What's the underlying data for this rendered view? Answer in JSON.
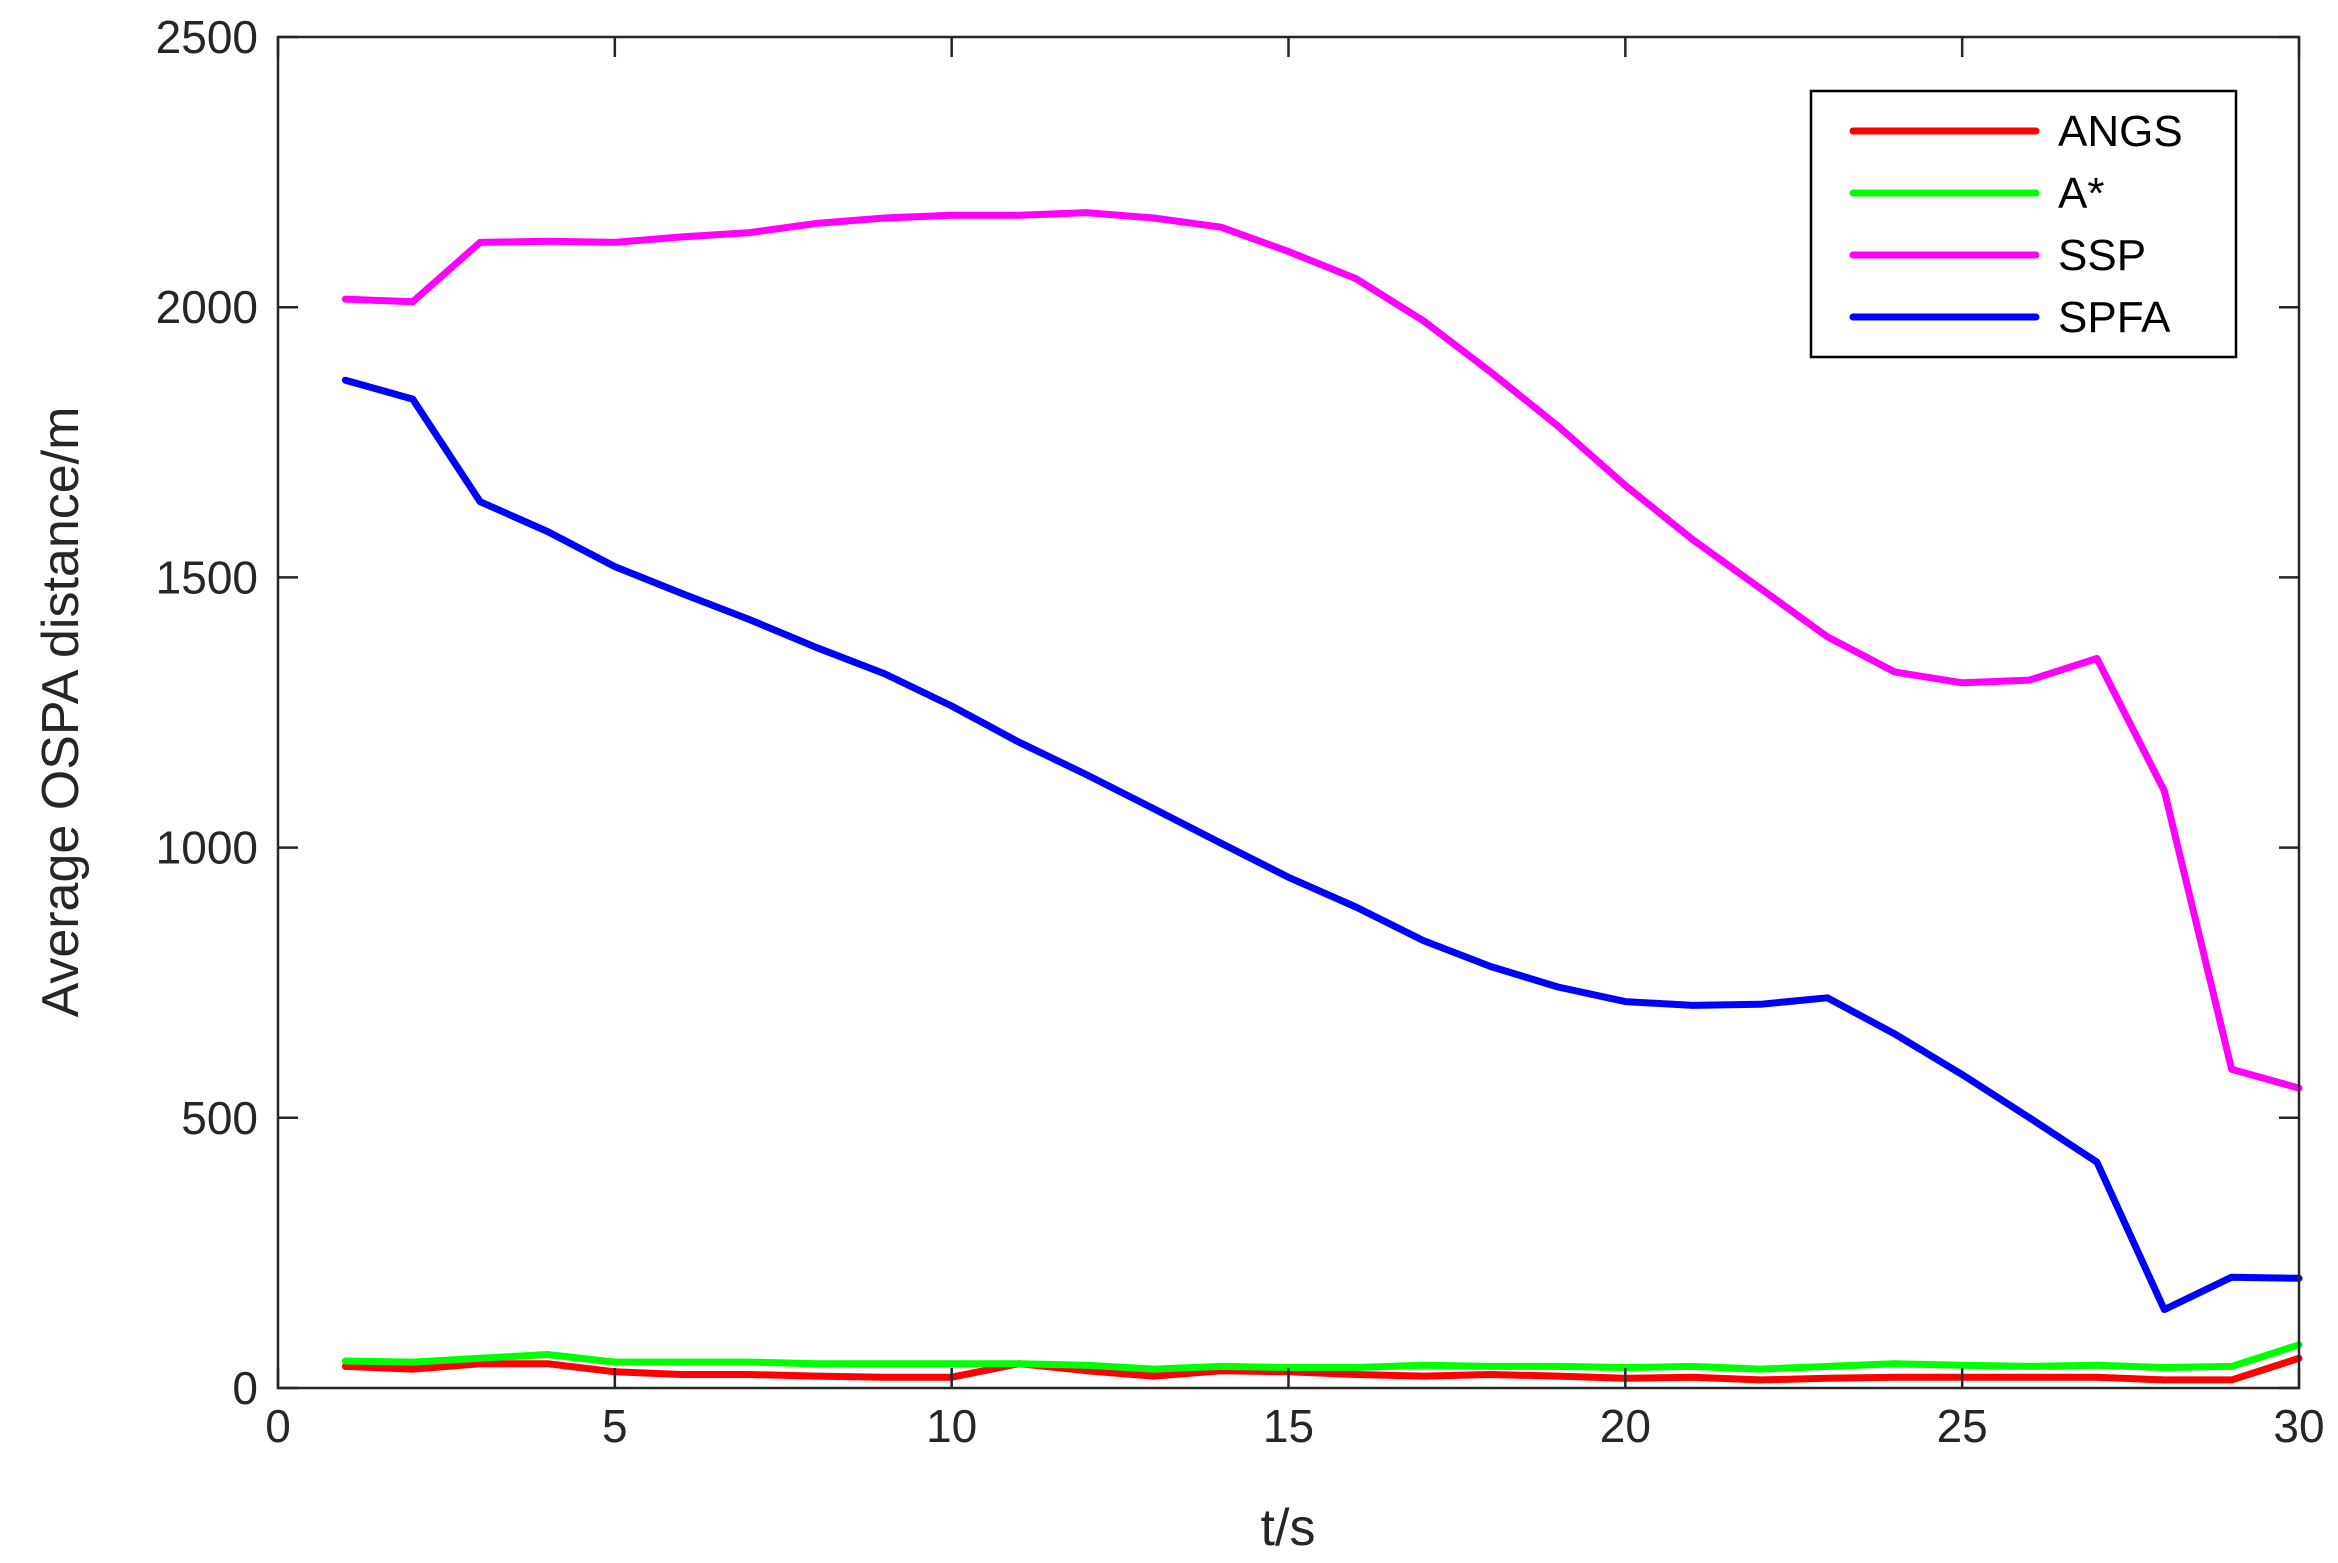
{
  "chart_data": {
    "type": "line",
    "title": "",
    "xlabel": "t/s",
    "ylabel": "Average OSPA distance/m",
    "xlim": [
      0,
      30
    ],
    "ylim": [
      0,
      2500
    ],
    "xticks": [
      0,
      5,
      10,
      15,
      20,
      25,
      30
    ],
    "yticks": [
      0,
      500,
      1000,
      1500,
      2000,
      2500
    ],
    "grid": false,
    "legend_position": "top-right",
    "x": [
      1,
      2,
      3,
      4,
      5,
      6,
      7,
      8,
      9,
      10,
      11,
      12,
      13,
      14,
      15,
      16,
      17,
      18,
      19,
      20,
      21,
      22,
      23,
      24,
      25,
      26,
      27,
      28,
      29,
      30
    ],
    "series": [
      {
        "name": "ANGS",
        "color": "#ff0000",
        "values": [
          40,
          35,
          45,
          45,
          30,
          25,
          25,
          22,
          20,
          20,
          45,
          32,
          22,
          32,
          30,
          25,
          22,
          25,
          22,
          18,
          20,
          15,
          18,
          20,
          20,
          20,
          20,
          15,
          15,
          55
        ]
      },
      {
        "name": "A*",
        "color": "#00ff00",
        "values": [
          50,
          48,
          55,
          62,
          48,
          48,
          48,
          45,
          45,
          45,
          45,
          42,
          35,
          40,
          38,
          38,
          42,
          40,
          40,
          38,
          40,
          35,
          40,
          45,
          42,
          40,
          42,
          38,
          40,
          80
        ]
      },
      {
        "name": "SSP",
        "color": "#ff00ff",
        "values": [
          2015,
          2010,
          2120,
          2122,
          2120,
          2130,
          2138,
          2155,
          2165,
          2170,
          2170,
          2175,
          2165,
          2148,
          2103,
          2053,
          1975,
          1880,
          1780,
          1670,
          1570,
          1480,
          1390,
          1325,
          1305,
          1310,
          1350,
          1105,
          590,
          555
        ]
      },
      {
        "name": "SPFA",
        "color": "#0000ff",
        "values": [
          1865,
          1830,
          1640,
          1585,
          1520,
          1470,
          1422,
          1370,
          1322,
          1262,
          1195,
          1135,
          1072,
          1008,
          945,
          890,
          828,
          780,
          742,
          715,
          708,
          710,
          722,
          655,
          580,
          500,
          418,
          145,
          205,
          203
        ]
      }
    ]
  }
}
